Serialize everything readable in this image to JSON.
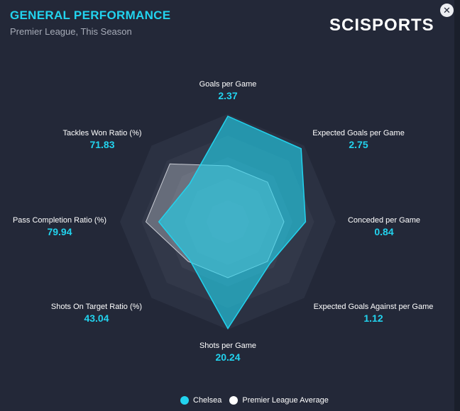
{
  "header": {
    "title": "GENERAL PERFORMANCE",
    "subtitle": "Premier League, This Season",
    "logo": "SCISPORTS",
    "close_icon": "close-circle-icon"
  },
  "colors": {
    "accent": "#22d3ee",
    "chelsea": "#22d3ee",
    "league_average": "#ffffff",
    "background": "#232838"
  },
  "radar": {
    "axes": [
      {
        "name": "Goals per Game",
        "value": "2.37"
      },
      {
        "name": "Expected Goals per Game",
        "value": "2.75"
      },
      {
        "name": "Conceded per Game",
        "value": "0.84"
      },
      {
        "name": "Expected Goals Against per Game",
        "value": "1.12"
      },
      {
        "name": "Shots per Game",
        "value": "20.24"
      },
      {
        "name": "Shots On Target Ratio (%)",
        "value": "43.04"
      },
      {
        "name": "Pass Completion Ratio (%)",
        "value": "79.94"
      },
      {
        "name": "Tackles Won Ratio (%)",
        "value": "71.83"
      }
    ],
    "series": [
      {
        "name": "Chelsea",
        "levels": [
          0.98,
          0.96,
          0.72,
          0.55,
          0.99,
          0.5,
          0.64,
          0.5
        ]
      },
      {
        "name": "Premier League Average",
        "levels": [
          0.52,
          0.52,
          0.52,
          0.52,
          0.52,
          0.52,
          0.76,
          0.76
        ]
      }
    ]
  },
  "legend": {
    "items": [
      "Chelsea",
      "Premier League Average"
    ]
  }
}
